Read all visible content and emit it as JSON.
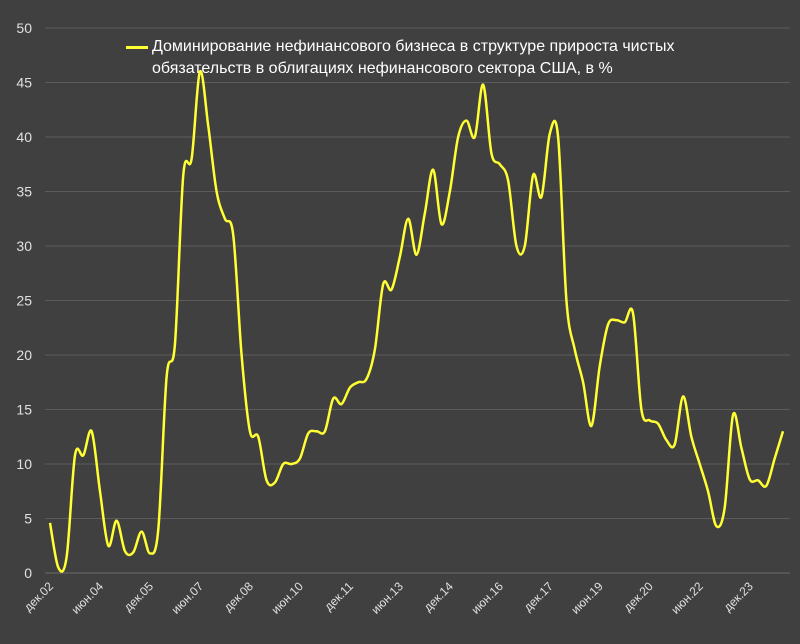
{
  "chart_data": {
    "type": "line",
    "categories": [
      "дек.02",
      null,
      null,
      null,
      null,
      null,
      "июн.04",
      null,
      null,
      null,
      null,
      null,
      "дек.05",
      null,
      null,
      null,
      null,
      null,
      "июн.07",
      null,
      null,
      null,
      null,
      null,
      "дек.08",
      null,
      null,
      null,
      null,
      null,
      "июн.10",
      null,
      null,
      null,
      null,
      null,
      "дек.11",
      null,
      null,
      null,
      null,
      null,
      "июн.13",
      null,
      null,
      null,
      null,
      null,
      "дек.14",
      null,
      null,
      null,
      null,
      null,
      "июн.16",
      null,
      null,
      null,
      null,
      null,
      "дек.17",
      null,
      null,
      null,
      null,
      null,
      "июн.19",
      null,
      null,
      null,
      null,
      null,
      "дек.20",
      null,
      null,
      null,
      null,
      null,
      "июн.22",
      null,
      null,
      null,
      null,
      null,
      "дек.23",
      null,
      null,
      null,
      null
    ],
    "series": [
      {
        "name": "Доминирование нефинансового бизнеса в структуре прироста чистых обязательств в облигациях нефинансового сектора США, в %",
        "color": "#ffff33",
        "values": [
          4.6,
          0.5,
          1.5,
          10.8,
          10.8,
          13,
          7.5,
          2.5,
          4.8,
          2,
          1.9,
          3.8,
          1.8,
          4,
          18,
          21,
          36.5,
          38,
          46,
          41,
          35,
          32.5,
          31,
          20,
          13,
          12.5,
          8.5,
          8.3,
          10,
          10,
          10.5,
          12.8,
          13,
          13,
          16,
          15.5,
          17,
          17.5,
          17.8,
          20.5,
          26.5,
          26,
          29,
          32.5,
          29.2,
          33,
          37,
          32,
          35,
          40,
          41.5,
          40,
          44.8,
          38.5,
          37.5,
          36,
          30,
          30,
          36.5,
          34.5,
          40.3,
          40,
          25,
          20.5,
          17.5,
          13.5,
          19,
          22.8,
          23.2,
          23,
          23.8,
          15,
          14,
          13.7,
          12.2,
          11.8,
          16.2,
          12.5,
          10,
          7.5,
          4.3,
          6,
          14.5,
          11.5,
          8.6,
          8.5,
          8,
          10.5,
          13
        ]
      }
    ],
    "ylim": [
      0,
      50
    ],
    "yticks": [
      0,
      5,
      10,
      15,
      20,
      25,
      30,
      35,
      40,
      45,
      50
    ],
    "grid": true
  }
}
